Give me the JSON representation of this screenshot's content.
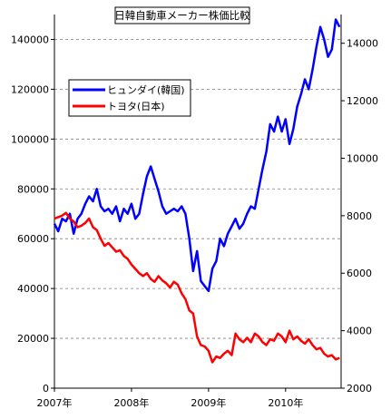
{
  "chart_data": {
    "type": "line",
    "title": "日韓自動車メーカー株価比較",
    "xlabel": "",
    "ylabel": "",
    "x_range": [
      2007.0,
      2010.72
    ],
    "x_tick_values": [
      2007,
      2008,
      2009,
      2010
    ],
    "x_tick_labels": [
      "2007年",
      "2008年",
      "2009年",
      "2010年"
    ],
    "y_left": {
      "range": [
        0,
        150000
      ],
      "ticks": [
        0,
        20000,
        40000,
        60000,
        80000,
        100000,
        120000,
        140000
      ],
      "series": "ヒュンダイ(韓国)"
    },
    "y_right": {
      "range": [
        2000,
        15000
      ],
      "ticks": [
        2000,
        4000,
        6000,
        8000,
        10000,
        12000,
        14000
      ],
      "series": "トヨタ(日本)"
    },
    "grid": true,
    "legend_position": "upper-left",
    "series": [
      {
        "name": "ヒュンダイ(韓国)",
        "axis": "left",
        "color": "#0000ff",
        "x": [
          2007.0,
          2007.05,
          2007.1,
          2007.15,
          2007.2,
          2007.25,
          2007.3,
          2007.35,
          2007.4,
          2007.45,
          2007.5,
          2007.55,
          2007.6,
          2007.65,
          2007.7,
          2007.75,
          2007.8,
          2007.85,
          2007.9,
          2007.95,
          2008.0,
          2008.05,
          2008.1,
          2008.15,
          2008.2,
          2008.25,
          2008.3,
          2008.35,
          2008.4,
          2008.45,
          2008.5,
          2008.55,
          2008.6,
          2008.65,
          2008.7,
          2008.75,
          2008.8,
          2008.85,
          2008.9,
          2008.95,
          2009.0,
          2009.05,
          2009.1,
          2009.15,
          2009.2,
          2009.25,
          2009.3,
          2009.35,
          2009.4,
          2009.45,
          2009.5,
          2009.55,
          2009.6,
          2009.65,
          2009.7,
          2009.75,
          2009.8,
          2009.85,
          2009.9,
          2009.95,
          2010.0,
          2010.05,
          2010.1,
          2010.15,
          2010.2,
          2010.25,
          2010.3,
          2010.35,
          2010.4,
          2010.45,
          2010.5,
          2010.55,
          2010.6,
          2010.65,
          2010.7
        ],
        "values": [
          66000,
          63000,
          68000,
          67000,
          70000,
          62000,
          68000,
          70000,
          74000,
          77000,
          75000,
          80000,
          73000,
          71000,
          72000,
          70000,
          73000,
          67000,
          72000,
          70000,
          74000,
          68000,
          70000,
          78000,
          85000,
          89000,
          84000,
          79000,
          73000,
          70000,
          71000,
          72000,
          71000,
          73000,
          70000,
          60000,
          47000,
          55000,
          43000,
          41000,
          39000,
          48000,
          51000,
          60000,
          57000,
          62000,
          65000,
          68000,
          64000,
          66000,
          70000,
          73000,
          72000,
          80000,
          88000,
          95000,
          106000,
          103000,
          109000,
          103000,
          108000,
          98000,
          104000,
          113000,
          118000,
          124000,
          120000,
          128000,
          137000,
          145000,
          140000,
          133000,
          136000,
          148000,
          145000
        ]
      },
      {
        "name": "トヨタ(日本)",
        "axis": "right",
        "color": "#ff0000",
        "x": [
          2007.0,
          2007.05,
          2007.1,
          2007.15,
          2007.2,
          2007.25,
          2007.3,
          2007.35,
          2007.4,
          2007.45,
          2007.5,
          2007.55,
          2007.6,
          2007.65,
          2007.7,
          2007.75,
          2007.8,
          2007.85,
          2007.9,
          2007.95,
          2008.0,
          2008.05,
          2008.1,
          2008.15,
          2008.2,
          2008.25,
          2008.3,
          2008.35,
          2008.4,
          2008.45,
          2008.5,
          2008.55,
          2008.6,
          2008.65,
          2008.7,
          2008.75,
          2008.8,
          2008.85,
          2008.9,
          2008.95,
          2009.0,
          2009.05,
          2009.1,
          2009.15,
          2009.2,
          2009.25,
          2009.3,
          2009.35,
          2009.4,
          2009.45,
          2009.5,
          2009.55,
          2009.6,
          2009.65,
          2009.7,
          2009.75,
          2009.8,
          2009.85,
          2009.9,
          2009.95,
          2010.0,
          2010.05,
          2010.1,
          2010.15,
          2010.2,
          2010.25,
          2010.3,
          2010.35,
          2010.4,
          2010.45,
          2010.5,
          2010.55,
          2010.6,
          2010.65,
          2010.7
        ],
        "values": [
          7900,
          7950,
          8000,
          8100,
          7900,
          7800,
          7600,
          7650,
          7750,
          7900,
          7600,
          7500,
          7200,
          6950,
          7050,
          6900,
          6750,
          6800,
          6600,
          6500,
          6300,
          6150,
          6000,
          5900,
          6000,
          5800,
          5700,
          5900,
          5750,
          5650,
          5500,
          5700,
          5600,
          5300,
          5100,
          4700,
          4600,
          3800,
          3500,
          3450,
          3300,
          2900,
          3100,
          3050,
          3200,
          3300,
          3150,
          3900,
          3700,
          3600,
          3750,
          3600,
          3900,
          3800,
          3600,
          3500,
          3700,
          3650,
          3900,
          3800,
          3600,
          4000,
          3700,
          3800,
          3650,
          3550,
          3700,
          3500,
          3350,
          3400,
          3200,
          3100,
          3150,
          3000,
          3050
        ]
      }
    ]
  },
  "legend": {
    "items": [
      {
        "label": "ヒュンダイ(韓国)",
        "color": "#0000ff"
      },
      {
        "label": "トヨタ(日本)",
        "color": "#ff0000"
      }
    ]
  }
}
